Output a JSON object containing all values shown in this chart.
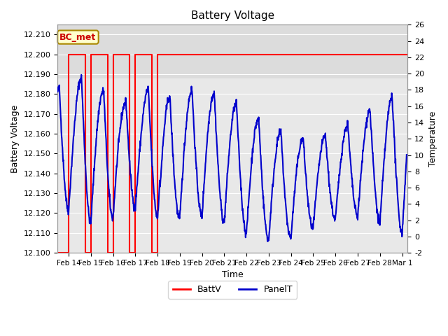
{
  "title": "Battery Voltage",
  "xlabel": "Time",
  "ylabel_left": "Battery Voltage",
  "ylabel_right": "Temperature",
  "ylim_left": [
    12.1,
    12.215
  ],
  "ylim_right": [
    -2,
    26
  ],
  "background_color": "#ffffff",
  "plot_bg_color": "#e8e8e8",
  "grid_color": "#ffffff",
  "battv_color": "#ff0000",
  "panelt_color": "#0000cc",
  "battv_constant": 12.2,
  "annotation_label": "BC_met",
  "annotation_bg": "#ffffcc",
  "annotation_border": "#aa8800",
  "annotation_text_color": "#cc0000",
  "x_tick_labels": [
    "Feb 14",
    "Feb 15",
    "Feb 16",
    "Feb 17",
    "Feb 18",
    "Feb 19",
    "Feb 20",
    "Feb 21",
    "Feb 22",
    "Feb 23",
    "Feb 24",
    "Feb 25",
    "Feb 26",
    "Feb 27",
    "Feb 28",
    "Mar 1"
  ],
  "x_tick_positions": [
    14,
    15,
    16,
    17,
    18,
    19,
    20,
    21,
    22,
    23,
    24,
    25,
    26,
    27,
    28,
    29
  ],
  "battv_x": [
    13.5,
    14.0,
    14.0,
    14.75,
    14.75,
    15.0,
    15.0,
    15.75,
    15.75,
    16.0,
    16.0,
    16.75,
    16.75,
    17.0,
    17.0,
    17.75,
    17.75,
    18.0,
    18.0,
    29.2
  ],
  "battv_y": [
    12.1,
    12.1,
    12.2,
    12.2,
    12.1,
    12.1,
    12.2,
    12.2,
    12.1,
    12.1,
    12.2,
    12.2,
    12.1,
    12.1,
    12.2,
    12.2,
    12.1,
    12.1,
    12.2,
    12.2
  ],
  "yticks_left": [
    12.1,
    12.11,
    12.12,
    12.13,
    12.14,
    12.15,
    12.16,
    12.17,
    12.18,
    12.19,
    12.2,
    12.21
  ],
  "yticks_right": [
    -2,
    0,
    2,
    4,
    6,
    8,
    10,
    12,
    14,
    16,
    18,
    20,
    22,
    24,
    26
  ],
  "xlim": [
    13.5,
    29.25
  ],
  "figsize": [
    6.4,
    4.8
  ],
  "dpi": 100
}
